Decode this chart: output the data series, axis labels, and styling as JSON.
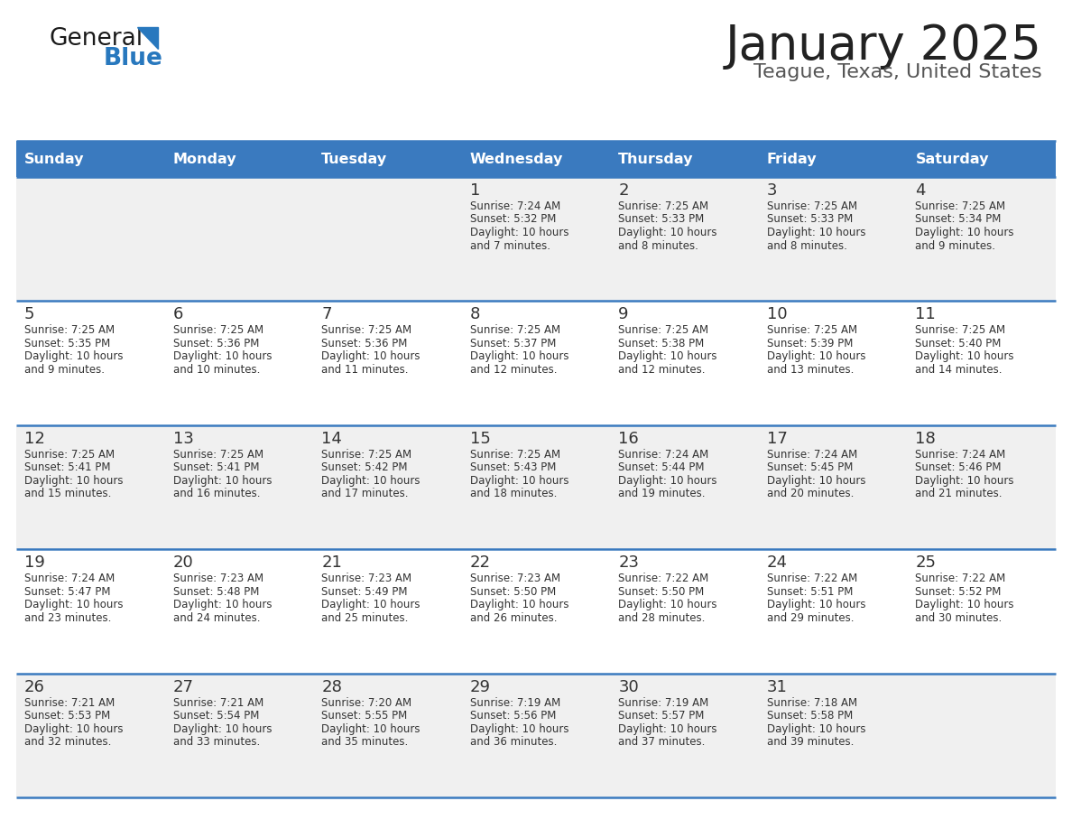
{
  "title": "January 2025",
  "subtitle": "Teague, Texas, United States",
  "days_of_week": [
    "Sunday",
    "Monday",
    "Tuesday",
    "Wednesday",
    "Thursday",
    "Friday",
    "Saturday"
  ],
  "header_bg": "#3a7abf",
  "header_text": "#ffffff",
  "cell_bg_odd": "#f0f0f0",
  "cell_bg_even": "#ffffff",
  "row_line_color": "#3a7abf",
  "text_color": "#333333",
  "title_color": "#222222",
  "subtitle_color": "#555555",
  "logo_general_color": "#1a1a1a",
  "logo_blue_color": "#2878be",
  "calendar_data": [
    [
      {
        "day": null,
        "sunrise": null,
        "sunset": null,
        "daylight": null
      },
      {
        "day": null,
        "sunrise": null,
        "sunset": null,
        "daylight": null
      },
      {
        "day": null,
        "sunrise": null,
        "sunset": null,
        "daylight": null
      },
      {
        "day": 1,
        "sunrise": "7:24 AM",
        "sunset": "5:32 PM",
        "daylight": "10 hours and 7 minutes."
      },
      {
        "day": 2,
        "sunrise": "7:25 AM",
        "sunset": "5:33 PM",
        "daylight": "10 hours and 8 minutes."
      },
      {
        "day": 3,
        "sunrise": "7:25 AM",
        "sunset": "5:33 PM",
        "daylight": "10 hours and 8 minutes."
      },
      {
        "day": 4,
        "sunrise": "7:25 AM",
        "sunset": "5:34 PM",
        "daylight": "10 hours and 9 minutes."
      }
    ],
    [
      {
        "day": 5,
        "sunrise": "7:25 AM",
        "sunset": "5:35 PM",
        "daylight": "10 hours and 9 minutes."
      },
      {
        "day": 6,
        "sunrise": "7:25 AM",
        "sunset": "5:36 PM",
        "daylight": "10 hours and 10 minutes."
      },
      {
        "day": 7,
        "sunrise": "7:25 AM",
        "sunset": "5:36 PM",
        "daylight": "10 hours and 11 minutes."
      },
      {
        "day": 8,
        "sunrise": "7:25 AM",
        "sunset": "5:37 PM",
        "daylight": "10 hours and 12 minutes."
      },
      {
        "day": 9,
        "sunrise": "7:25 AM",
        "sunset": "5:38 PM",
        "daylight": "10 hours and 12 minutes."
      },
      {
        "day": 10,
        "sunrise": "7:25 AM",
        "sunset": "5:39 PM",
        "daylight": "10 hours and 13 minutes."
      },
      {
        "day": 11,
        "sunrise": "7:25 AM",
        "sunset": "5:40 PM",
        "daylight": "10 hours and 14 minutes."
      }
    ],
    [
      {
        "day": 12,
        "sunrise": "7:25 AM",
        "sunset": "5:41 PM",
        "daylight": "10 hours and 15 minutes."
      },
      {
        "day": 13,
        "sunrise": "7:25 AM",
        "sunset": "5:41 PM",
        "daylight": "10 hours and 16 minutes."
      },
      {
        "day": 14,
        "sunrise": "7:25 AM",
        "sunset": "5:42 PM",
        "daylight": "10 hours and 17 minutes."
      },
      {
        "day": 15,
        "sunrise": "7:25 AM",
        "sunset": "5:43 PM",
        "daylight": "10 hours and 18 minutes."
      },
      {
        "day": 16,
        "sunrise": "7:24 AM",
        "sunset": "5:44 PM",
        "daylight": "10 hours and 19 minutes."
      },
      {
        "day": 17,
        "sunrise": "7:24 AM",
        "sunset": "5:45 PM",
        "daylight": "10 hours and 20 minutes."
      },
      {
        "day": 18,
        "sunrise": "7:24 AM",
        "sunset": "5:46 PM",
        "daylight": "10 hours and 21 minutes."
      }
    ],
    [
      {
        "day": 19,
        "sunrise": "7:24 AM",
        "sunset": "5:47 PM",
        "daylight": "10 hours and 23 minutes."
      },
      {
        "day": 20,
        "sunrise": "7:23 AM",
        "sunset": "5:48 PM",
        "daylight": "10 hours and 24 minutes."
      },
      {
        "day": 21,
        "sunrise": "7:23 AM",
        "sunset": "5:49 PM",
        "daylight": "10 hours and 25 minutes."
      },
      {
        "day": 22,
        "sunrise": "7:23 AM",
        "sunset": "5:50 PM",
        "daylight": "10 hours and 26 minutes."
      },
      {
        "day": 23,
        "sunrise": "7:22 AM",
        "sunset": "5:50 PM",
        "daylight": "10 hours and 28 minutes."
      },
      {
        "day": 24,
        "sunrise": "7:22 AM",
        "sunset": "5:51 PM",
        "daylight": "10 hours and 29 minutes."
      },
      {
        "day": 25,
        "sunrise": "7:22 AM",
        "sunset": "5:52 PM",
        "daylight": "10 hours and 30 minutes."
      }
    ],
    [
      {
        "day": 26,
        "sunrise": "7:21 AM",
        "sunset": "5:53 PM",
        "daylight": "10 hours and 32 minutes."
      },
      {
        "day": 27,
        "sunrise": "7:21 AM",
        "sunset": "5:54 PM",
        "daylight": "10 hours and 33 minutes."
      },
      {
        "day": 28,
        "sunrise": "7:20 AM",
        "sunset": "5:55 PM",
        "daylight": "10 hours and 35 minutes."
      },
      {
        "day": 29,
        "sunrise": "7:19 AM",
        "sunset": "5:56 PM",
        "daylight": "10 hours and 36 minutes."
      },
      {
        "day": 30,
        "sunrise": "7:19 AM",
        "sunset": "5:57 PM",
        "daylight": "10 hours and 37 minutes."
      },
      {
        "day": 31,
        "sunrise": "7:18 AM",
        "sunset": "5:58 PM",
        "daylight": "10 hours and 39 minutes."
      },
      {
        "day": null,
        "sunrise": null,
        "sunset": null,
        "daylight": null
      }
    ]
  ]
}
